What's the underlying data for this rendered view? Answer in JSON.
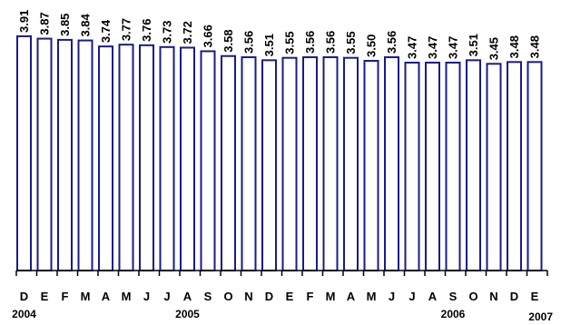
{
  "chart_data": {
    "type": "bar",
    "categories": [
      "D",
      "E",
      "F",
      "M",
      "A",
      "M",
      "J",
      "J",
      "A",
      "S",
      "O",
      "N",
      "D",
      "E",
      "F",
      "M",
      "A",
      "M",
      "J",
      "J",
      "A",
      "S",
      "O",
      "N",
      "D",
      "E"
    ],
    "values": [
      3.91,
      3.87,
      3.85,
      3.84,
      3.74,
      3.77,
      3.76,
      3.73,
      3.72,
      3.66,
      3.58,
      3.56,
      3.51,
      3.55,
      3.56,
      3.56,
      3.55,
      3.5,
      3.56,
      3.47,
      3.47,
      3.47,
      3.51,
      3.45,
      3.48,
      3.48
    ],
    "value_labels": [
      "3.91",
      "3.87",
      "3.85",
      "3.84",
      "3.74",
      "3.77",
      "3.76",
      "3.73",
      "3.72",
      "3.66",
      "3.58",
      "3.56",
      "3.51",
      "3.55",
      "3.56",
      "3.56",
      "3.55",
      "3.50",
      "3.56",
      "3.47",
      "3.47",
      "3.47",
      "3.51",
      "3.45",
      "3.48",
      "3.48"
    ],
    "year_labels": [
      {
        "text": "2004",
        "index": 0
      },
      {
        "text": "2005",
        "index": 8
      },
      {
        "text": "2006",
        "index": 21
      },
      {
        "text": "2007",
        "index": 25
      }
    ],
    "bar_fill": "#ffffff",
    "bar_stroke": "#1a1a8c",
    "axis_color": "#000000",
    "ylim": [
      0,
      4.0
    ],
    "grid": false,
    "title": "",
    "xlabel": "",
    "ylabel": ""
  }
}
